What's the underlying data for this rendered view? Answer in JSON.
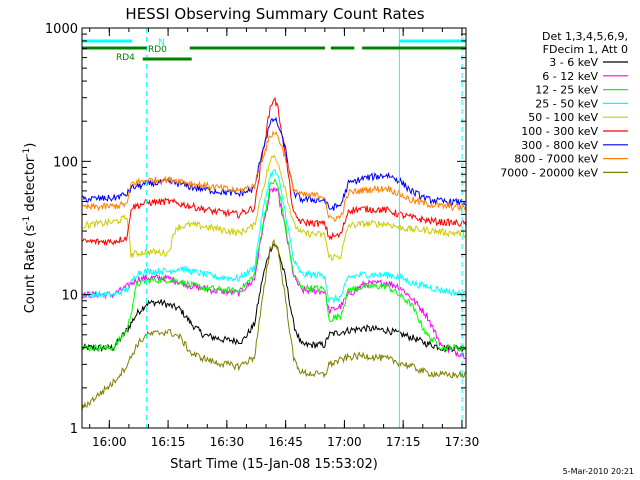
{
  "chart_data": {
    "type": "line",
    "title": "HESSI Observing Summary Count Rates",
    "xlabel": "Start Time (15-Jan-08 15:53:02)",
    "ylabel_main": "Count Rate (s",
    "ylabel_sup1": "-1",
    "ylabel_mid": " detector",
    "ylabel_sup2": "-1",
    "ylabel_end": ")",
    "x_unit": "minutes since 15:53:02",
    "xlim": [
      0,
      98
    ],
    "ylim": [
      1,
      1000
    ],
    "yscale": "log",
    "x_ticks": [
      {
        "label": "16:00",
        "x": 6.97
      },
      {
        "label": "16:15",
        "x": 21.97
      },
      {
        "label": "16:30",
        "x": 36.97
      },
      {
        "label": "16:45",
        "x": 51.97
      },
      {
        "label": "17:00",
        "x": 66.97
      },
      {
        "label": "17:15",
        "x": 81.97
      },
      {
        "label": "17:30",
        "x": 96.97
      }
    ],
    "y_ticks": [
      {
        "label": "1",
        "y": 1
      },
      {
        "label": "10",
        "y": 10
      },
      {
        "label": "100",
        "y": 100
      },
      {
        "label": "1000",
        "y": 1000
      }
    ],
    "legend_header": [
      "Det 1,3,4,5,6,9,",
      "FDecim 1, Att 0"
    ],
    "legend_placement": "right",
    "timestamp": "5-Mar-2010 20:21",
    "bars": {
      "N": {
        "label": "N",
        "color": "#00ffff",
        "segments": [
          [
            0,
            12.8
          ],
          [
            81,
            98
          ]
        ]
      },
      "RD0": {
        "label": "RD0",
        "color": "#008000",
        "segments": [
          [
            0,
            16.5
          ],
          [
            27.5,
            62
          ],
          [
            63.5,
            69.5
          ],
          [
            71.5,
            98
          ]
        ]
      },
      "RD4": {
        "label": "RD4",
        "color": "#008000",
        "segments": [
          [
            15.5,
            28
          ]
        ]
      }
    },
    "vlines_dashed": [
      16.5,
      97
    ],
    "vlines_solid": [
      81
    ],
    "series": [
      {
        "name": "3 - 6 keV",
        "color": "#000000",
        "points": [
          [
            0,
            4
          ],
          [
            8,
            4
          ],
          [
            11.6,
            5.5
          ],
          [
            14,
            7.2
          ],
          [
            16.5,
            8.6
          ],
          [
            20,
            8.8
          ],
          [
            25,
            7.8
          ],
          [
            28,
            6
          ],
          [
            31,
            5
          ],
          [
            36,
            4.6
          ],
          [
            41,
            4.5
          ],
          [
            44,
            6
          ],
          [
            46,
            13
          ],
          [
            48,
            22
          ],
          [
            49,
            24
          ],
          [
            50,
            22
          ],
          [
            52,
            13
          ],
          [
            54,
            6
          ],
          [
            56,
            4.2
          ],
          [
            61,
            4.2
          ],
          [
            62,
            4.2
          ],
          [
            63,
            5
          ],
          [
            68,
            5.4
          ],
          [
            72,
            5.6
          ],
          [
            78,
            5.4
          ],
          [
            84,
            4.8
          ],
          [
            88,
            4.3
          ],
          [
            92,
            4
          ],
          [
            98,
            4
          ]
        ]
      },
      {
        "name": "6 - 12 keV",
        "color": "#ff00ff",
        "points": [
          [
            0,
            10
          ],
          [
            8,
            10
          ],
          [
            11.6,
            11.5
          ],
          [
            14,
            13
          ],
          [
            16.5,
            13.4
          ],
          [
            22,
            13.3
          ],
          [
            25,
            12.4
          ],
          [
            28,
            11.6
          ],
          [
            34,
            10.7
          ],
          [
            40,
            10.3
          ],
          [
            44,
            13
          ],
          [
            46,
            30
          ],
          [
            48,
            58
          ],
          [
            49,
            62
          ],
          [
            50,
            58
          ],
          [
            52,
            30
          ],
          [
            54,
            14
          ],
          [
            56,
            10.8
          ],
          [
            62,
            10.6
          ],
          [
            63,
            7.5
          ],
          [
            66,
            8.2
          ],
          [
            68,
            10
          ],
          [
            72,
            12
          ],
          [
            78,
            12.3
          ],
          [
            81,
            11.5
          ],
          [
            84,
            9.5
          ],
          [
            88,
            7
          ],
          [
            92,
            4
          ],
          [
            98,
            3.5
          ]
        ]
      },
      {
        "name": "12 - 25 keV",
        "color": "#00ff00",
        "points": [
          [
            0,
            4
          ],
          [
            8,
            4
          ],
          [
            11.6,
            5.5
          ],
          [
            14,
            12
          ],
          [
            16.5,
            12.8
          ],
          [
            22,
            13
          ],
          [
            25,
            12.6
          ],
          [
            28,
            11.7
          ],
          [
            34,
            11
          ],
          [
            40,
            10.6
          ],
          [
            44,
            14
          ],
          [
            46,
            32
          ],
          [
            48,
            65
          ],
          [
            49,
            72
          ],
          [
            50,
            65
          ],
          [
            52,
            32
          ],
          [
            54,
            14
          ],
          [
            56,
            11.3
          ],
          [
            62,
            11
          ],
          [
            63,
            6.5
          ],
          [
            66,
            7
          ],
          [
            68,
            10.8
          ],
          [
            72,
            11.5
          ],
          [
            78,
            11.6
          ],
          [
            84,
            8.5
          ],
          [
            88,
            5
          ],
          [
            92,
            4
          ],
          [
            98,
            4
          ]
        ]
      },
      {
        "name": "25 - 50 keV",
        "color": "#00ffff",
        "points": [
          [
            0,
            10
          ],
          [
            8,
            10
          ],
          [
            11.6,
            11
          ],
          [
            14,
            14.5
          ],
          [
            16.5,
            15
          ],
          [
            22,
            15
          ],
          [
            25,
            15.8
          ],
          [
            28,
            15
          ],
          [
            34,
            13.6
          ],
          [
            40,
            13.2
          ],
          [
            44,
            16
          ],
          [
            46,
            40
          ],
          [
            48,
            78
          ],
          [
            49,
            85
          ],
          [
            50,
            78
          ],
          [
            52,
            40
          ],
          [
            54,
            18
          ],
          [
            56,
            14.2
          ],
          [
            62,
            14
          ],
          [
            63,
            9
          ],
          [
            66,
            9.5
          ],
          [
            68,
            13.5
          ],
          [
            72,
            14.2
          ],
          [
            78,
            14
          ],
          [
            81,
            13.6
          ],
          [
            84,
            12.3
          ],
          [
            88,
            11.5
          ],
          [
            92,
            10.8
          ],
          [
            98,
            10
          ]
        ]
      },
      {
        "name": "50 - 100 keV",
        "color": "#cccc00",
        "points": [
          [
            0,
            33
          ],
          [
            8,
            35
          ],
          [
            11.6,
            38
          ],
          [
            12.5,
            20
          ],
          [
            16.5,
            21
          ],
          [
            22,
            20.5
          ],
          [
            24,
            32
          ],
          [
            28,
            33.5
          ],
          [
            34,
            31.5
          ],
          [
            40,
            29
          ],
          [
            44,
            33
          ],
          [
            46,
            60
          ],
          [
            48,
            100
          ],
          [
            49,
            110
          ],
          [
            50,
            100
          ],
          [
            52,
            60
          ],
          [
            54,
            34
          ],
          [
            56,
            29
          ],
          [
            62,
            28
          ],
          [
            63,
            19
          ],
          [
            66,
            19.5
          ],
          [
            68,
            33
          ],
          [
            72,
            34
          ],
          [
            78,
            34
          ],
          [
            81,
            32
          ],
          [
            84,
            31
          ],
          [
            88,
            30.5
          ],
          [
            92,
            29.5
          ],
          [
            98,
            28.5
          ]
        ]
      },
      {
        "name": "100 - 300 keV",
        "color": "#ff0000",
        "points": [
          [
            0,
            25
          ],
          [
            8,
            25
          ],
          [
            11.6,
            27
          ],
          [
            12.5,
            45
          ],
          [
            16.5,
            49
          ],
          [
            22,
            50
          ],
          [
            25,
            48
          ],
          [
            28,
            46
          ],
          [
            34,
            42
          ],
          [
            40,
            40
          ],
          [
            44,
            45
          ],
          [
            46,
            110
          ],
          [
            48,
            250
          ],
          [
            49,
            300
          ],
          [
            50,
            250
          ],
          [
            52,
            110
          ],
          [
            54,
            40
          ],
          [
            56,
            35
          ],
          [
            62,
            34
          ],
          [
            63,
            27
          ],
          [
            66,
            28
          ],
          [
            68,
            43
          ],
          [
            72,
            44
          ],
          [
            78,
            43
          ],
          [
            81,
            40
          ],
          [
            84,
            38
          ],
          [
            88,
            36
          ],
          [
            92,
            35
          ],
          [
            98,
            34
          ]
        ]
      },
      {
        "name": "300 - 800 keV",
        "color": "#0000ff",
        "points": [
          [
            0,
            52
          ],
          [
            8,
            53
          ],
          [
            11.6,
            57
          ],
          [
            12.5,
            63
          ],
          [
            16.5,
            68
          ],
          [
            22,
            70
          ],
          [
            25,
            68
          ],
          [
            28,
            64
          ],
          [
            34,
            60
          ],
          [
            40,
            57
          ],
          [
            44,
            62
          ],
          [
            46,
            120
          ],
          [
            48,
            190
          ],
          [
            49,
            210
          ],
          [
            50,
            190
          ],
          [
            52,
            120
          ],
          [
            54,
            58
          ],
          [
            56,
            52
          ],
          [
            62,
            51
          ],
          [
            63,
            44
          ],
          [
            66,
            47
          ],
          [
            68,
            68
          ],
          [
            72,
            75
          ],
          [
            78,
            79
          ],
          [
            81,
            72
          ],
          [
            84,
            60
          ],
          [
            88,
            52
          ],
          [
            92,
            50
          ],
          [
            98,
            49
          ]
        ]
      },
      {
        "name": "800 - 7000 keV",
        "color": "#ff8000",
        "points": [
          [
            0,
            45
          ],
          [
            8,
            46
          ],
          [
            11.6,
            48
          ],
          [
            12.5,
            68
          ],
          [
            16.5,
            72
          ],
          [
            22,
            73
          ],
          [
            25,
            72
          ],
          [
            28,
            68
          ],
          [
            34,
            64
          ],
          [
            40,
            60
          ],
          [
            44,
            66
          ],
          [
            46,
            105
          ],
          [
            48,
            155
          ],
          [
            49,
            165
          ],
          [
            50,
            155
          ],
          [
            52,
            105
          ],
          [
            54,
            62
          ],
          [
            56,
            56
          ],
          [
            62,
            55
          ],
          [
            63,
            37
          ],
          [
            66,
            38
          ],
          [
            68,
            58
          ],
          [
            72,
            61
          ],
          [
            78,
            63
          ],
          [
            81,
            57
          ],
          [
            84,
            51
          ],
          [
            88,
            48
          ],
          [
            92,
            46
          ],
          [
            98,
            45
          ]
        ]
      },
      {
        "name": "7000 - 20000 keV",
        "color": "#808000",
        "points": [
          [
            0,
            1.4
          ],
          [
            8,
            2.2
          ],
          [
            11.6,
            3
          ],
          [
            14,
            4.2
          ],
          [
            16.5,
            5
          ],
          [
            22,
            5.3
          ],
          [
            25,
            4.8
          ],
          [
            28,
            3.6
          ],
          [
            34,
            3.1
          ],
          [
            40,
            2.9
          ],
          [
            44,
            3.4
          ],
          [
            46,
            9
          ],
          [
            48,
            22
          ],
          [
            49,
            25
          ],
          [
            50,
            22
          ],
          [
            52,
            9
          ],
          [
            54,
            3.3
          ],
          [
            56,
            2.6
          ],
          [
            62,
            2.5
          ],
          [
            63,
            3
          ],
          [
            68,
            3.4
          ],
          [
            72,
            3.5
          ],
          [
            78,
            3.3
          ],
          [
            84,
            2.9
          ],
          [
            88,
            2.6
          ],
          [
            92,
            2.5
          ],
          [
            98,
            2.5
          ]
        ]
      }
    ]
  }
}
